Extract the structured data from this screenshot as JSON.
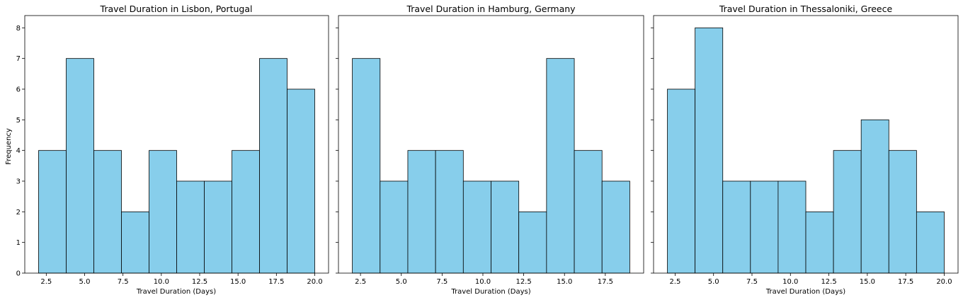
{
  "chart_data": [
    {
      "type": "bar",
      "title": "Travel Duration in Lisbon, Portugal",
      "xlabel": "Travel Duration (Days)",
      "ylabel": "Frequency",
      "bin_edges": [
        2.0,
        3.8,
        5.6,
        7.4,
        9.2,
        11.0,
        12.8,
        14.6,
        16.4,
        18.2,
        20.0
      ],
      "values": [
        4,
        7,
        4,
        2,
        4,
        3,
        3,
        4,
        7,
        6
      ],
      "xlim": [
        1.1,
        20.9
      ],
      "ylim": [
        0,
        8.4
      ],
      "xticks": [
        2.5,
        5.0,
        7.5,
        10.0,
        12.5,
        15.0,
        17.5,
        20.0
      ],
      "xtick_labels": [
        "2.5",
        "5.0",
        "7.5",
        "10.0",
        "12.5",
        "15.0",
        "17.5",
        "20.0"
      ],
      "yticks": [
        0,
        1,
        2,
        3,
        4,
        5,
        6,
        7,
        8
      ],
      "ytick_labels": [
        "0",
        "1",
        "2",
        "3",
        "4",
        "5",
        "6",
        "7",
        "8"
      ],
      "bar_color": "#87CEEB",
      "edge_color": "#000000",
      "grid": false
    },
    {
      "type": "bar",
      "title": "Travel Duration in Hamburg, Germany",
      "xlabel": "Travel Duration (Days)",
      "ylabel": "",
      "bin_edges": [
        2.0,
        3.7,
        5.4,
        7.1,
        8.8,
        10.5,
        12.2,
        13.9,
        15.6,
        17.3,
        19.0
      ],
      "values": [
        7,
        3,
        4,
        4,
        3,
        3,
        2,
        7,
        4,
        3
      ],
      "xlim": [
        1.15,
        19.85
      ],
      "ylim": [
        0,
        8.4
      ],
      "xticks": [
        2.5,
        5.0,
        7.5,
        10.0,
        12.5,
        15.0,
        17.5
      ],
      "xtick_labels": [
        "2.5",
        "5.0",
        "7.5",
        "10.0",
        "12.5",
        "15.0",
        "17.5"
      ],
      "yticks": [
        0,
        1,
        2,
        3,
        4,
        5,
        6,
        7,
        8
      ],
      "ytick_labels": [],
      "bar_color": "#87CEEB",
      "edge_color": "#000000",
      "grid": false
    },
    {
      "type": "bar",
      "title": "Travel Duration in Thessaloniki, Greece",
      "xlabel": "Travel Duration (Days)",
      "ylabel": "",
      "bin_edges": [
        2.0,
        3.8,
        5.6,
        7.4,
        9.2,
        11.0,
        12.8,
        14.6,
        16.4,
        18.2,
        20.0
      ],
      "values": [
        6,
        8,
        3,
        3,
        3,
        2,
        4,
        5,
        4,
        2
      ],
      "xlim": [
        1.1,
        20.9
      ],
      "ylim": [
        0,
        8.4
      ],
      "xticks": [
        2.5,
        5.0,
        7.5,
        10.0,
        12.5,
        15.0,
        17.5,
        20.0
      ],
      "xtick_labels": [
        "2.5",
        "5.0",
        "7.5",
        "10.0",
        "12.5",
        "15.0",
        "17.5",
        "20.0"
      ],
      "yticks": [
        0,
        1,
        2,
        3,
        4,
        5,
        6,
        7,
        8
      ],
      "ytick_labels": [],
      "bar_color": "#87CEEB",
      "edge_color": "#000000",
      "grid": false
    }
  ]
}
